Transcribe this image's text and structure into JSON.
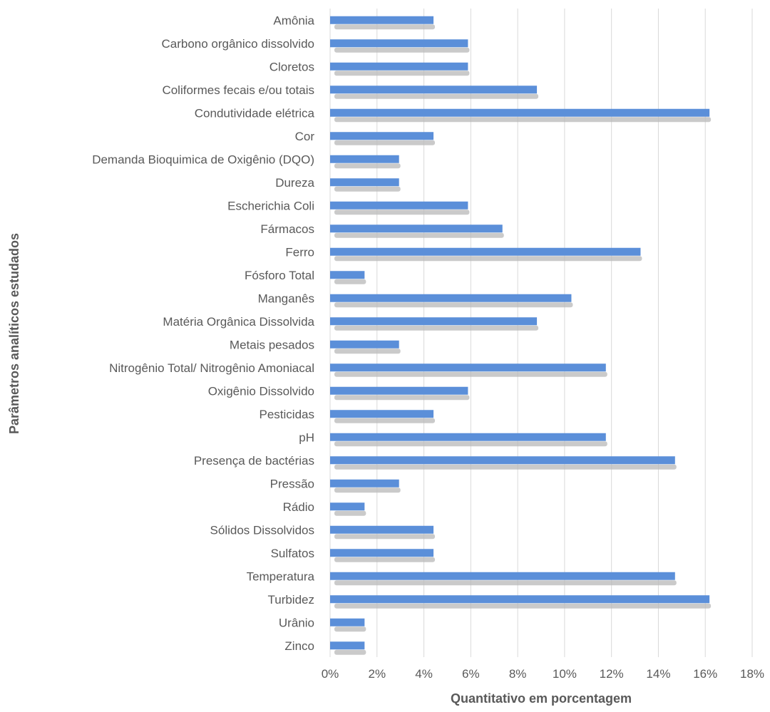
{
  "chart_data": {
    "type": "bar",
    "orientation": "horizontal",
    "title": "",
    "xlabel": "Quantitativo em porcentagem",
    "ylabel": "Parâmetros analíticos estudados",
    "xlim": [
      0,
      18
    ],
    "xticks": [
      "0%",
      "2%",
      "4%",
      "6%",
      "8%",
      "10%",
      "12%",
      "14%",
      "16%",
      "18%"
    ],
    "grid": true,
    "legend": "none",
    "bar_color": "#5b8fd9",
    "categories": [
      "Amônia",
      "Carbono orgânico dissolvido",
      "Cloretos",
      "Coliformes fecais e/ou totais",
      "Condutividade elétrica",
      "Cor",
      "Demanda Bioquimica de Oxigênio (DQO)",
      "Dureza",
      "Escherichia Coli",
      "Fármacos",
      "Ferro",
      "Fósforo Total",
      "Manganês",
      "Matéria Orgânica Dissolvida",
      "Metais pesados",
      "Nitrogênio Total/ Nitrogênio Amoniacal",
      "Oxigênio Dissolvido",
      "Pesticidas",
      "pH",
      "Presença de bactérias",
      "Pressão",
      "Rádio",
      "Sólidos Dissolvidos",
      "Sulfatos",
      "Temperatura",
      "Turbidez",
      "Urânio",
      "Zinco"
    ],
    "values": [
      4.41,
      5.88,
      5.88,
      8.82,
      16.18,
      4.41,
      2.94,
      2.94,
      5.88,
      7.35,
      13.24,
      1.47,
      10.29,
      8.82,
      2.94,
      11.76,
      5.88,
      4.41,
      11.76,
      14.71,
      2.94,
      1.47,
      4.41,
      4.41,
      14.71,
      16.18,
      1.47,
      1.47
    ]
  }
}
